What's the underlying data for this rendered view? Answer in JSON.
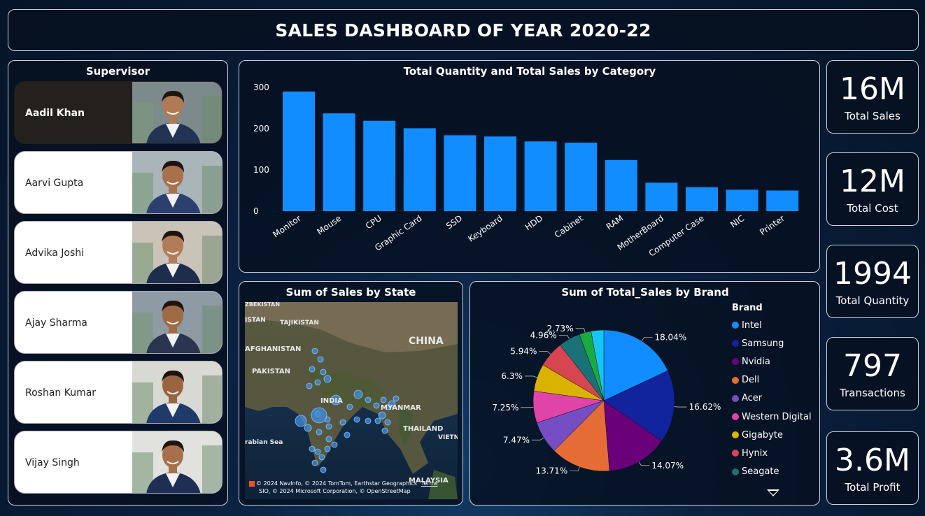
{
  "title": "SALES DASHBOARD OF YEAR 2020-22",
  "supervisor": {
    "title": "Supervisor",
    "items": [
      {
        "name": "Aadil Khan",
        "selected": true
      },
      {
        "name": "Aarvi Gupta",
        "selected": false
      },
      {
        "name": "Advika Joshi",
        "selected": false
      },
      {
        "name": "Ajay Sharma",
        "selected": false
      },
      {
        "name": "Roshan Kumar",
        "selected": false
      },
      {
        "name": "Vijay Singh",
        "selected": false
      }
    ]
  },
  "kpis": [
    {
      "value": "16M",
      "label": "Total Sales"
    },
    {
      "value": "12M",
      "label": "Total Cost"
    },
    {
      "value": "1994",
      "label": "Total Quantity"
    },
    {
      "value": "797",
      "label": "Transactions"
    },
    {
      "value": "3.6M",
      "label": "Total Profit"
    }
  ],
  "map": {
    "title": "Sum of Sales by State",
    "labels": [
      "ZBEKISTAN",
      "TAJIKISTAN",
      "ISTAN",
      "AFGHANISTAN",
      "CHINA",
      "PAKISTAN",
      "INDIA",
      "MYANMAR",
      "THAILAND",
      "rabian Sea",
      "MALAYSIA",
      "VIETN"
    ],
    "attribution_line1": "© 2024 NavInfo, © 2024 TomTom, Earthstar Geographics",
    "attribution_terms": "Terms",
    "attribution_line2": "SIO, © 2024 Microsoft Corporation, © OpenStreetMap"
  },
  "colors": {
    "bar": "#118dff",
    "panel_border": "#c9d3df",
    "selected_card": "#23201d"
  },
  "chart_data": [
    {
      "type": "bar",
      "title": "Total Quantity and Total Sales by Category",
      "categories": [
        "Monitor",
        "Mouse",
        "CPU",
        "Graphic Card",
        "SSD",
        "Keyboard",
        "HDD",
        "Cabinet",
        "RAM",
        "MotherBoard",
        "Computer Case",
        "NIC",
        "Printer"
      ],
      "values": [
        290,
        237,
        219,
        201,
        184,
        181,
        169,
        166,
        124,
        69,
        58,
        52,
        50
      ],
      "ylim": [
        0,
        300
      ],
      "yticks": [
        0,
        100,
        200,
        300
      ],
      "series_color": "#118dff"
    },
    {
      "type": "pie",
      "title": "Sum of Total_Sales by Brand",
      "legend_title": "Brand",
      "legend_placement": "right",
      "slices": [
        {
          "name": "Intel",
          "value": 18.04,
          "label": "18.04%",
          "color": "#118dff"
        },
        {
          "name": "Samsung",
          "value": 16.62,
          "label": "16.62%",
          "color": "#12239e"
        },
        {
          "name": "Nvidia",
          "value": 14.07,
          "label": "14.07%",
          "color": "#6b007b"
        },
        {
          "name": "Dell",
          "value": 13.71,
          "label": "13.71%",
          "color": "#e66c37"
        },
        {
          "name": "Acer",
          "value": 7.47,
          "label": "7.47%",
          "color": "#744ec2"
        },
        {
          "name": "Western Digital",
          "value": 7.25,
          "label": "7.25%",
          "color": "#e044a7"
        },
        {
          "name": "Gigabyte",
          "value": 6.3,
          "label": "6.3%",
          "color": "#d9b300"
        },
        {
          "name": "Hynix",
          "value": 5.94,
          "label": "5.94%",
          "color": "#d64550"
        },
        {
          "name": "Seagate",
          "value": 4.96,
          "label": "4.96%",
          "color": "#197278"
        },
        {
          "name": "",
          "value": 2.73,
          "label": "2.73%",
          "color": "#1aab40"
        },
        {
          "name": "",
          "value": 2.91,
          "label": "",
          "color": "#15c6f4"
        }
      ]
    }
  ]
}
